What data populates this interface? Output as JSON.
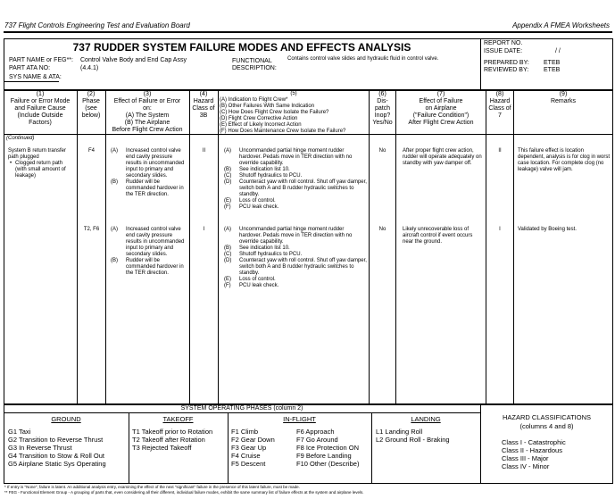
{
  "page_header": {
    "left": "737 Flight Controls Engineering Test and Evaluation Board",
    "right": "Appendix A   FMEA Worksheets"
  },
  "title": "737 RUDDER SYSTEM FAILURE MODES AND EFFECTS ANALYSIS",
  "part_name_label": "PART NAME or FEG**:",
  "part_name": "Control Valve Body and End Cap Assy",
  "part_ata_label": "PART ATA NO:",
  "part_ata": "(4.4.1)",
  "sys_name_label": "SYS NAME & ATA:",
  "functional_label": "FUNCTIONAL",
  "description_label": "DESCRIPTION:",
  "functional_description": "Contains control valve slides and hydraulic fluid in control valve.",
  "report": {
    "report_no_label": "REPORT NO.",
    "issue_date_label": "ISSUE DATE:",
    "issue_date": "/   /",
    "prepared_label": "PREPARED BY:",
    "prepared": "ETEB",
    "reviewed_label": "REVIEWED BY:",
    "reviewed": "ETEB"
  },
  "columns": [
    {
      "num": "(1)",
      "label": "Failure or Error Mode and Failure Cause (Include Outside Factors)"
    },
    {
      "num": "(2)",
      "label": "Phase (see below)"
    },
    {
      "num": "(3)",
      "lines": [
        "Effect of Failure or Error",
        "on:",
        "(A)  The System",
        "(B)  The Airplane",
        "Before Flight Crew Action"
      ]
    },
    {
      "num": "(4)",
      "label": "Hazard Class of 3B"
    },
    {
      "num": "(5)",
      "lines": [
        "(A) Indication to Flight Crew*",
        "(B) Other Failures With Same Indication",
        "(C) How Does Flight Crew Isolate the Failure?",
        "(D) Flight Crew Corrective Action",
        "(E) Effect of Likely Incorrect Action",
        "(F) How Does Maintenance Crew Isolate the Failure?"
      ]
    },
    {
      "num": "(6)",
      "label": "Dis-patch Inop? Yes/No"
    },
    {
      "num": "(7)",
      "lines": [
        "Effect of Failure",
        "on Airplane",
        "(\"Failure Condition\")",
        "After Flight Crew Action"
      ]
    },
    {
      "num": "(8)",
      "label": "Hazard Class of 7"
    },
    {
      "num": "(9)",
      "label": "Remarks"
    }
  ],
  "continued": "(Continued)",
  "rows": [
    {
      "mode": "System B return transfer path plugged",
      "cause": "Clogged return path (with small amount of leakage)",
      "phase": "F4",
      "effect": [
        [
          "(A)",
          "Increased control valve end cavity pressure results in uncommanded input to primary and secondary slides."
        ],
        [
          "(B)",
          "Rudder will be commanded hardover in the TER direction."
        ]
      ],
      "hazard3": "II",
      "actions": [
        [
          "(A)",
          "Uncommanded partial hinge moment rudder hardover. Pedals move in TER direction with no override capability."
        ],
        [
          "(B)",
          "See indication list 10."
        ],
        [
          "(C)",
          "Shutoff hydraulics to PCU."
        ],
        [
          "(D)",
          "Counteract yaw with roll control.  Shut off yaw damper, switch both A and B rudder hydraulic switches to standby."
        ],
        [
          "(E)",
          "Loss of control."
        ],
        [
          "(F)",
          "PCU leak check."
        ]
      ],
      "dispatch": "No",
      "effect7": "After proper flight crew action, rudder will operate adequately on standby with yaw damper off.",
      "hazard7": "II",
      "remarks": "This failure effect is location dependent, analysis is for clog in worst case location. For complete clog (no leakage) valve will jam."
    },
    {
      "phase": "T2, F6",
      "effect": [
        [
          "(A)",
          "Increased control valve end cavity pressure results in uncommanded input to primary and secondary slides."
        ],
        [
          "(B)",
          "Rudder will be commanded hardover in the TER direction."
        ]
      ],
      "hazard3": "I",
      "actions": [
        [
          "(A)",
          "Uncommanded partial hinge moment rudder hardover. Pedals move in TER direction with no override capability."
        ],
        [
          "(B)",
          "See indication list 10."
        ],
        [
          "(C)",
          "Shutoff hydraulics to PCU."
        ],
        [
          "(D)",
          "Counteract yaw with roll control.  Shut off yaw damper, switch both A and B rudder hydraulic switches to standby."
        ],
        [
          "(E)",
          "Loss of control."
        ],
        [
          "(F)",
          "PCU leak check."
        ]
      ],
      "dispatch": "No",
      "effect7": "Likely unrecoverable loss of aircraft control if event occurs near the ground.",
      "hazard7": "I",
      "remarks": "Validated by Boeing test."
    }
  ],
  "phases": {
    "title": "SYSTEM OPERATING PHASES (column 2)",
    "ground": {
      "title": "GROUND",
      "items": [
        "G1  Taxi",
        "G2  Transition to Reverse Thrust",
        "G3  In Reverse Thrust",
        "G4  Transition to Stow & Roll Out",
        "G5  Airplane Static Sys Operating"
      ]
    },
    "takeoff": {
      "title": "TAKEOFF",
      "items": [
        "T1  Takeoff prior to Rotation",
        "T2  Takeoff after Rotation",
        "T3    Rejected Takeoff"
      ]
    },
    "inflight": {
      "title": "IN-FLIGHT",
      "items": [
        "F1  Climb",
        "F2  Gear Down",
        "F3  Gear Up",
        "F4  Cruise",
        "F5  Descent"
      ],
      "items2": [
        "F6   Approach",
        "F7   Go Around",
        "F8   Ice Protection ON",
        "F9   Before Landing",
        "F10 Other (Describe)"
      ]
    },
    "landing": {
      "title": "LANDING",
      "items": [
        "L1  Landing Roll",
        "L2  Ground Roll - Braking"
      ]
    }
  },
  "hazard": {
    "title": "HAZARD CLASSIFICATIONS",
    "subtitle": "(columns 4 and 8)",
    "items": [
      "Class I   - Catastrophic",
      "Class II  - Hazardous",
      "Class III - Major",
      "Class IV - Minor"
    ]
  },
  "footnotes": [
    "*  If entry is \"None\", failure is latent.  An additional analysis entry, examining the effect of the next \"significant\" failure in the presence of this latent failure, must be made.",
    "** FEG - Functional Element Group - A grouping of parts that, even considering all their different, individual failure modes, exhibit the same summary list of failure effects at the system and airplane levels."
  ]
}
